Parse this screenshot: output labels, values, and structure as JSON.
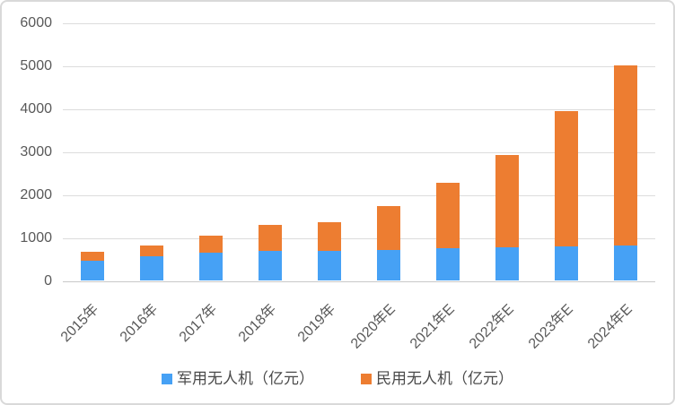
{
  "chart_data": {
    "type": "bar",
    "stacked": true,
    "title": "",
    "xlabel": "",
    "ylabel": "",
    "categories": [
      "2015年",
      "2016年",
      "2017年",
      "2018年",
      "2019年",
      "2020年E",
      "2021年E",
      "2022年E",
      "2023年E",
      "2024年E"
    ],
    "series": [
      {
        "name": "军用无人机（亿元）",
        "color": "#46a1f5",
        "values": [
          470,
          568,
          656,
          690,
          703,
          727,
          752,
          778,
          805,
          833
        ]
      },
      {
        "name": "民用无人机（亿元）",
        "color": "#ed7d31",
        "values": [
          200,
          264,
          405,
          610,
          660,
          1008,
          1535,
          2146,
          3150,
          4180
        ]
      }
    ],
    "totals": [
      670,
      832,
      1061,
      1300,
      1363,
      1735,
      2287,
      2924,
      3955,
      5013
    ],
    "ylim": [
      0,
      6000
    ],
    "ytick_step": 1000,
    "yticks": [
      "0",
      "1000",
      "2000",
      "3000",
      "4000",
      "5000",
      "6000"
    ],
    "grid": true,
    "legend_position": "bottom"
  },
  "theme": {
    "background": "#ffffff",
    "frame_border": "#d9d9d9",
    "grid_color": "#dcdcdc",
    "axis_line_color": "#c9c9c9",
    "axis_text_color": "#595959",
    "legend_text_color": "#4a4a4a"
  }
}
